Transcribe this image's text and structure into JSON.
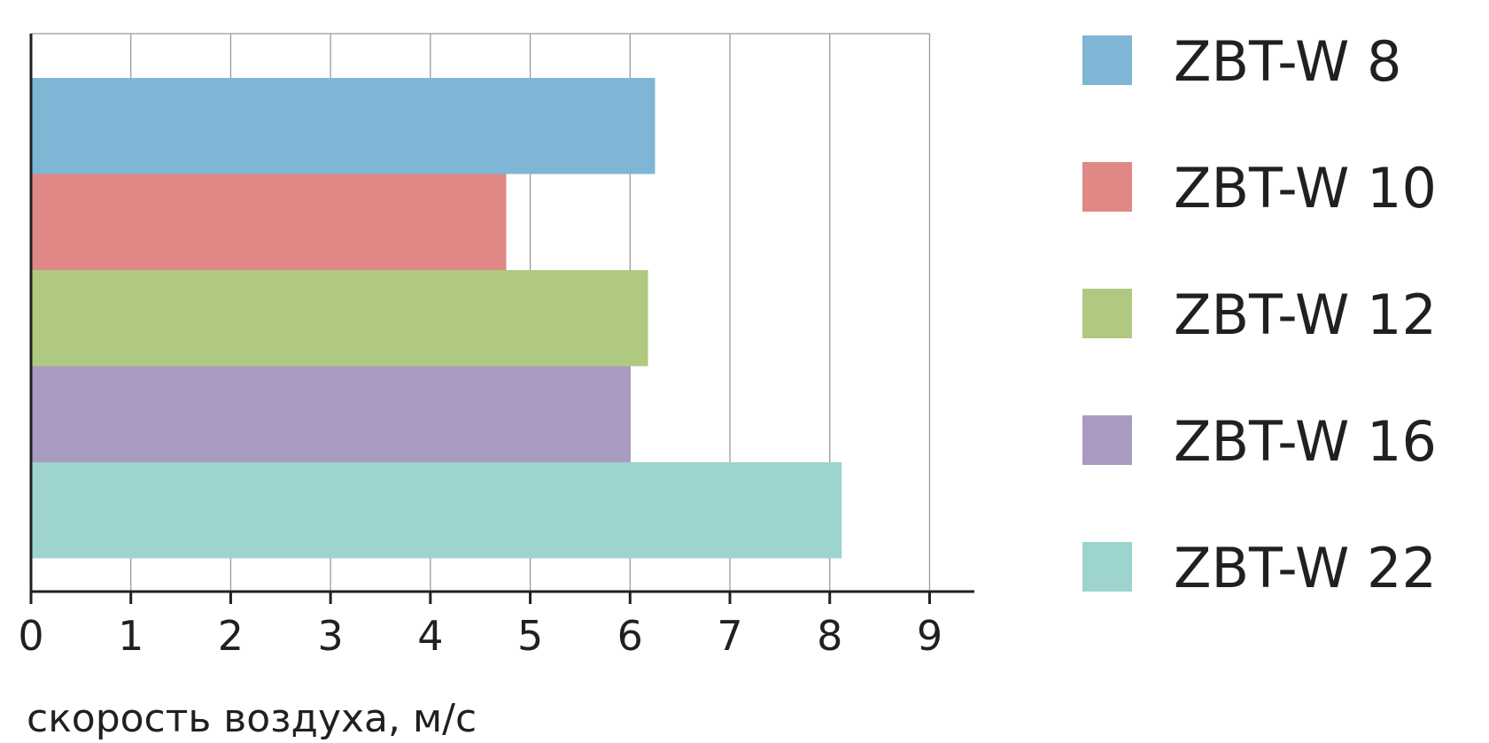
{
  "chart_data": {
    "type": "bar",
    "orientation": "horizontal",
    "series": [
      {
        "name": "ZBT-W 8",
        "value": 6.25,
        "color": "#7fb5d5"
      },
      {
        "name": "ZBT-W 10",
        "value": 4.76,
        "color": "#e08886"
      },
      {
        "name": "ZBT-W 12",
        "value": 6.18,
        "color": "#b0c981"
      },
      {
        "name": "ZBT-W 16",
        "value": 6.0,
        "color": "#a99bc1"
      },
      {
        "name": "ZBT-W 22",
        "value": 8.12,
        "color": "#9dd4d0"
      }
    ],
    "xlabel": "скорость воздуха, м/с",
    "xlim": [
      0,
      9
    ],
    "xticks": [
      "0",
      "1",
      "2",
      "3",
      "4",
      "5",
      "6",
      "7",
      "8",
      "9"
    ],
    "grid": true,
    "legend_position": "right"
  }
}
